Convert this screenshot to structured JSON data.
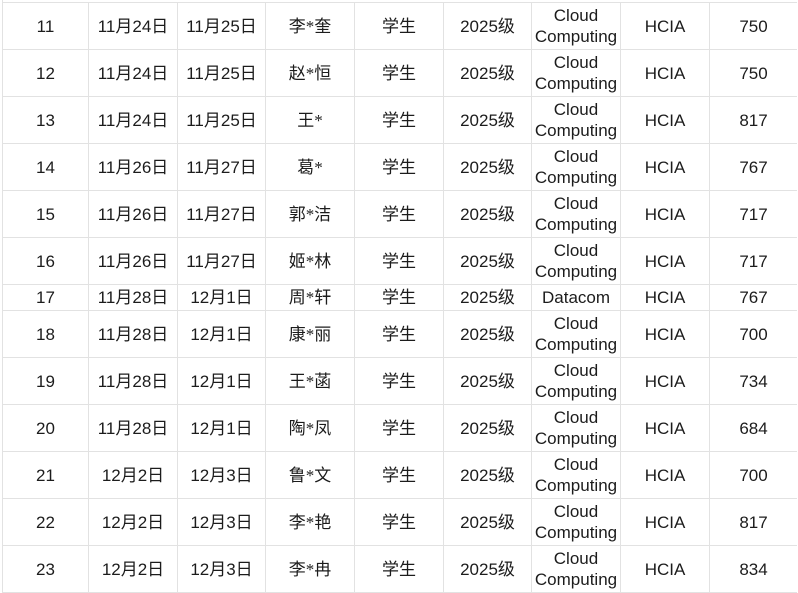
{
  "colors": {
    "border": "#e2e2e2",
    "text": "#1c1c1c",
    "background": "#ffffff"
  },
  "table": {
    "rows": [
      {
        "serial": "11",
        "start": "11月24日",
        "end": "11月25日",
        "name": "李*奎",
        "identity": "学生",
        "grade": "2025级",
        "course": "Cloud Computing",
        "cert": "HCIA",
        "score": "750"
      },
      {
        "serial": "12",
        "start": "11月24日",
        "end": "11月25日",
        "name": "赵*恒",
        "identity": "学生",
        "grade": "2025级",
        "course": "Cloud Computing",
        "cert": "HCIA",
        "score": "750"
      },
      {
        "serial": "13",
        "start": "11月24日",
        "end": "11月25日",
        "name": "王*",
        "identity": "学生",
        "grade": "2025级",
        "course": "Cloud Computing",
        "cert": "HCIA",
        "score": "817"
      },
      {
        "serial": "14",
        "start": "11月26日",
        "end": "11月27日",
        "name": "葛*",
        "identity": "学生",
        "grade": "2025级",
        "course": "Cloud Computing",
        "cert": "HCIA",
        "score": "767"
      },
      {
        "serial": "15",
        "start": "11月26日",
        "end": "11月27日",
        "name": "郭*洁",
        "identity": "学生",
        "grade": "2025级",
        "course": "Cloud Computing",
        "cert": "HCIA",
        "score": "717"
      },
      {
        "serial": "16",
        "start": "11月26日",
        "end": "11月27日",
        "name": "姬*林",
        "identity": "学生",
        "grade": "2025级",
        "course": "Cloud Computing",
        "cert": "HCIA",
        "score": "717"
      },
      {
        "serial": "17",
        "start": "11月28日",
        "end": "12月1日",
        "name": "周*轩",
        "identity": "学生",
        "grade": "2025级",
        "course": "Datacom",
        "cert": "HCIA",
        "score": "767"
      },
      {
        "serial": "18",
        "start": "11月28日",
        "end": "12月1日",
        "name": "康*丽",
        "identity": "学生",
        "grade": "2025级",
        "course": "Cloud Computing",
        "cert": "HCIA",
        "score": "700"
      },
      {
        "serial": "19",
        "start": "11月28日",
        "end": "12月1日",
        "name": "王*菡",
        "identity": "学生",
        "grade": "2025级",
        "course": "Cloud Computing",
        "cert": "HCIA",
        "score": "734"
      },
      {
        "serial": "20",
        "start": "11月28日",
        "end": "12月1日",
        "name": "陶*凤",
        "identity": "学生",
        "grade": "2025级",
        "course": "Cloud Computing",
        "cert": "HCIA",
        "score": "684"
      },
      {
        "serial": "21",
        "start": "12月2日",
        "end": "12月3日",
        "name": "鲁*文",
        "identity": "学生",
        "grade": "2025级",
        "course": "Cloud Computing",
        "cert": "HCIA",
        "score": "700"
      },
      {
        "serial": "22",
        "start": "12月2日",
        "end": "12月3日",
        "name": "李*艳",
        "identity": "学生",
        "grade": "2025级",
        "course": "Cloud Computing",
        "cert": "HCIA",
        "score": "817"
      },
      {
        "serial": "23",
        "start": "12月2日",
        "end": "12月3日",
        "name": "李*冉",
        "identity": "学生",
        "grade": "2025级",
        "course": "Cloud Computing",
        "cert": "HCIA",
        "score": "834"
      }
    ]
  }
}
